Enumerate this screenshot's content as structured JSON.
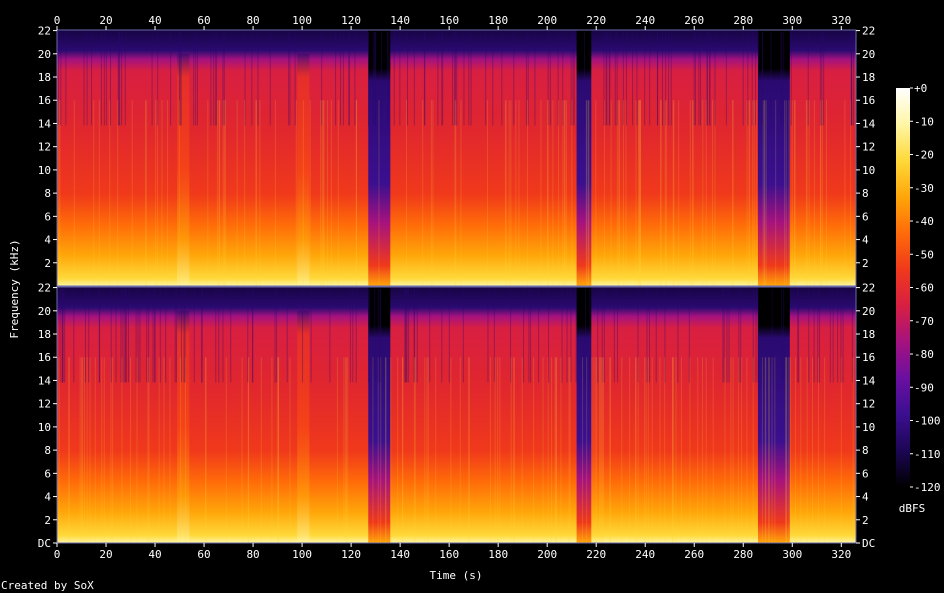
{
  "chart_data": {
    "type": "heatmap",
    "subtype": "spectrogram",
    "channels": 2,
    "xlabel": "Time (s)",
    "ylabel": "Frequency (kHz)",
    "x_ticks": [
      "0",
      "20",
      "40",
      "60",
      "80",
      "100",
      "120",
      "140",
      "160",
      "180",
      "200",
      "220",
      "240",
      "260",
      "280",
      "300",
      "320"
    ],
    "y_ticks_top": [
      "2",
      "4",
      "6",
      "8",
      "10",
      "12",
      "14",
      "16",
      "18",
      "20",
      "22"
    ],
    "y_ticks_bottom": [
      "DC",
      "2",
      "4",
      "6",
      "8",
      "10",
      "12",
      "14",
      "16",
      "18",
      "20",
      "22"
    ],
    "xlim": [
      0,
      326
    ],
    "ylim": [
      0,
      22.05
    ],
    "colorbar": {
      "label": "dBFS",
      "ticks": [
        "+0",
        "-10",
        "-20",
        "-30",
        "-40",
        "-50",
        "-60",
        "-70",
        "-80",
        "-90",
        "-100",
        "-110",
        "-120"
      ],
      "range": [
        -120,
        0
      ]
    },
    "colormap": [
      "#000000",
      "#1c0654",
      "#3b0f8f",
      "#6a0fa0",
      "#a5127f",
      "#d81f42",
      "#f0391b",
      "#ff6b09",
      "#ffa609",
      "#ffd93a",
      "#fff6a5",
      "#ffffff"
    ],
    "quiet_segments_s": [
      [
        127,
        136
      ],
      [
        212,
        218
      ],
      [
        286,
        299
      ]
    ],
    "bright_segments_s": [
      [
        49,
        54
      ],
      [
        98,
        103
      ]
    ]
  },
  "footer": {
    "credit": "Created by SoX"
  }
}
